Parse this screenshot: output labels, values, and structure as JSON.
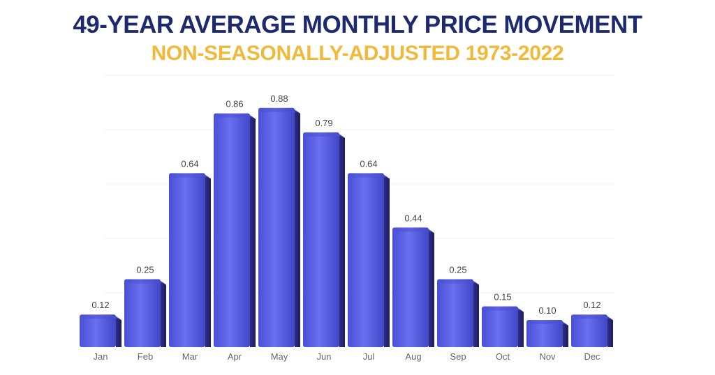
{
  "colors": {
    "title": "#1e2a6e",
    "subtitle": "#f0b93a",
    "bar_front": "#5b62e8",
    "bar_side": "#2d3190",
    "bar_top": "#4b51cf",
    "grid": "#eef0f4",
    "label": "#444444",
    "tick": "#666666"
  },
  "chart_data": {
    "type": "bar",
    "title": "49-YEAR AVERAGE MONTHLY PRICE MOVEMENT",
    "subtitle": "NON-SEASONALLY-ADJUSTED 1973-2022",
    "categories": [
      "Jan",
      "Feb",
      "Mar",
      "Apr",
      "May",
      "Jun",
      "Jul",
      "Aug",
      "Sep",
      "Oct",
      "Nov",
      "Dec"
    ],
    "values": [
      0.12,
      0.25,
      0.64,
      0.86,
      0.88,
      0.79,
      0.64,
      0.44,
      0.25,
      0.15,
      0.1,
      0.12
    ],
    "value_labels": [
      "0.12",
      "0.25",
      "0.64",
      "0.86",
      "0.88",
      "0.79",
      "0.64",
      "0.44",
      "0.25",
      "0.15",
      "0.10",
      "0.12"
    ],
    "xlabel": "",
    "ylabel": "",
    "ylim": [
      0,
      1.0
    ],
    "grid": true,
    "legend": "none"
  }
}
